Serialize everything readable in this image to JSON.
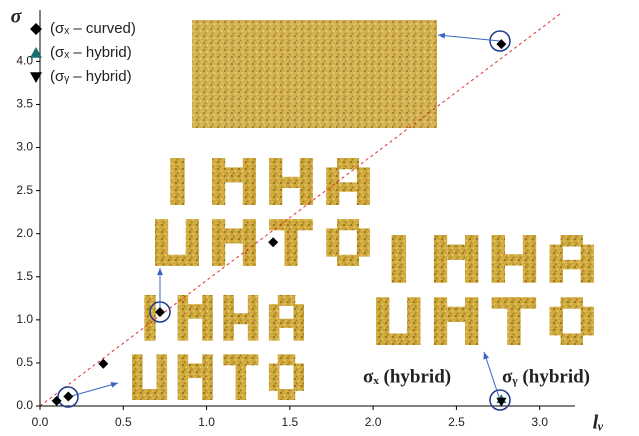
{
  "chart_data": {
    "type": "scatter",
    "xlabel": "lᵥ",
    "ylabel": "σ",
    "xlim": [
      0,
      3.2
    ],
    "ylim": [
      0,
      4.55
    ],
    "xticks": [
      {
        "value": 0,
        "label": "0.0"
      },
      0.5,
      {
        "value": 1,
        "label": "1.0"
      },
      1.5,
      {
        "value": 2,
        "label": "2.0"
      },
      2.5,
      {
        "value": 3,
        "label": "3.0"
      }
    ],
    "yticks": [
      {
        "value": 0,
        "label": "0.0"
      },
      0.5,
      {
        "value": 1,
        "label": "1.0"
      },
      1.5,
      {
        "value": 2,
        "label": "2.0"
      },
      2.5,
      {
        "value": 3,
        "label": "3.0"
      },
      3.5,
      {
        "value": 4,
        "label": "4.0"
      }
    ],
    "series": [
      {
        "name": "(σₓ – curved)",
        "color": "#000000",
        "marker": "diamond",
        "x": [
          0.1,
          0.17,
          0.38,
          0.72,
          1.4,
          2.77
        ],
        "values": [
          0.06,
          0.11,
          0.49,
          1.09,
          1.9,
          4.2
        ]
      },
      {
        "name": "(σₓ – hybrid)",
        "color": "#1a7070",
        "marker": "triangle-up",
        "x": [
          2.77
        ],
        "values": [
          0.08
        ]
      },
      {
        "name": "(σᵧ – hybrid)",
        "color": "#000000",
        "marker": "triangle-down",
        "x": [
          2.77
        ],
        "values": [
          0.05
        ]
      }
    ],
    "annotations": [
      "σₓ (hybrid)",
      "σᵧ (hybrid)"
    ]
  }
}
